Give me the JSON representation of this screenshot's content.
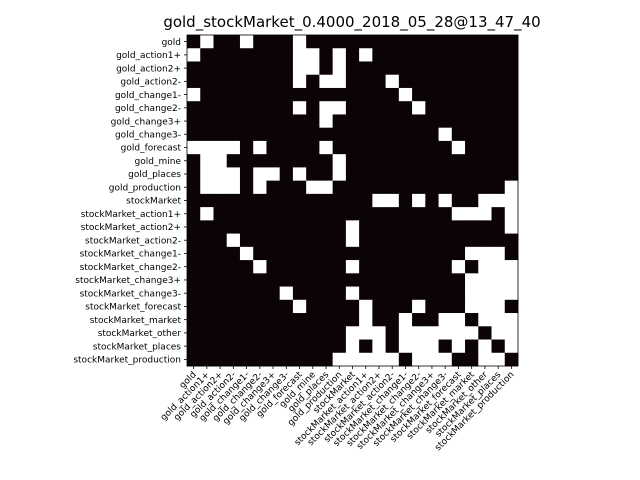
{
  "chart_data": {
    "type": "heatmap",
    "title": "gold_stockMarket_0.4000_2018_05_28@13_47_40",
    "xlabel": "",
    "ylabel": "",
    "colors": {
      "zero": "#0c0404",
      "one": "#ffffff",
      "frame": "#000000"
    },
    "labels": [
      "gold",
      "gold_action1+",
      "gold_action2+",
      "gold_action2-",
      "gold_change1-",
      "gold_change2-",
      "gold_change3+",
      "gold_change3-",
      "gold_forecast",
      "gold_mine",
      "gold_places",
      "gold_production",
      "stockMarket",
      "stockMarket_action1+",
      "stockMarket_action2+",
      "stockMarket_action2-",
      "stockMarket_change1-",
      "stockMarket_change2-",
      "stockMarket_change3+",
      "stockMarket_change3-",
      "stockMarket_forecast",
      "stockMarket_market",
      "stockMarket_other",
      "stockMarket_places",
      "stockMarket_production"
    ],
    "matrix": [
      [
        0,
        1,
        0,
        0,
        1,
        0,
        0,
        0,
        1,
        0,
        0,
        0,
        0,
        0,
        0,
        0,
        0,
        0,
        0,
        0,
        0,
        0,
        0,
        0,
        0
      ],
      [
        1,
        0,
        0,
        0,
        0,
        0,
        0,
        0,
        1,
        1,
        0,
        1,
        0,
        1,
        0,
        0,
        0,
        0,
        0,
        0,
        0,
        0,
        0,
        0,
        0
      ],
      [
        0,
        0,
        0,
        0,
        0,
        0,
        0,
        0,
        1,
        1,
        0,
        1,
        0,
        0,
        0,
        0,
        0,
        0,
        0,
        0,
        0,
        0,
        0,
        0,
        0
      ],
      [
        0,
        0,
        0,
        0,
        0,
        0,
        0,
        0,
        1,
        0,
        1,
        1,
        0,
        0,
        0,
        1,
        0,
        0,
        0,
        0,
        0,
        0,
        0,
        0,
        0
      ],
      [
        1,
        0,
        0,
        0,
        0,
        0,
        0,
        0,
        0,
        0,
        0,
        0,
        0,
        0,
        0,
        0,
        1,
        0,
        0,
        0,
        0,
        0,
        0,
        0,
        0
      ],
      [
        0,
        0,
        0,
        0,
        0,
        0,
        0,
        0,
        1,
        0,
        1,
        1,
        0,
        0,
        0,
        0,
        0,
        1,
        0,
        0,
        0,
        0,
        0,
        0,
        0
      ],
      [
        0,
        0,
        0,
        0,
        0,
        0,
        0,
        0,
        0,
        0,
        1,
        0,
        0,
        0,
        0,
        0,
        0,
        0,
        0,
        0,
        0,
        0,
        0,
        0,
        0
      ],
      [
        0,
        0,
        0,
        0,
        0,
        0,
        0,
        0,
        0,
        0,
        0,
        0,
        0,
        0,
        0,
        0,
        0,
        0,
        0,
        1,
        0,
        0,
        0,
        0,
        0
      ],
      [
        1,
        1,
        1,
        1,
        0,
        1,
        0,
        0,
        0,
        0,
        1,
        0,
        0,
        0,
        0,
        0,
        0,
        0,
        0,
        0,
        1,
        0,
        0,
        0,
        0
      ],
      [
        0,
        1,
        1,
        0,
        0,
        0,
        0,
        0,
        0,
        0,
        0,
        1,
        0,
        0,
        0,
        0,
        0,
        0,
        0,
        0,
        0,
        0,
        0,
        0,
        0
      ],
      [
        0,
        1,
        1,
        1,
        0,
        1,
        1,
        0,
        1,
        0,
        0,
        1,
        0,
        0,
        0,
        0,
        0,
        0,
        0,
        0,
        0,
        0,
        0,
        0,
        0
      ],
      [
        0,
        1,
        1,
        1,
        0,
        1,
        0,
        0,
        0,
        1,
        1,
        0,
        0,
        0,
        0,
        0,
        0,
        0,
        0,
        0,
        0,
        0,
        0,
        0,
        1
      ],
      [
        0,
        0,
        0,
        0,
        0,
        0,
        0,
        0,
        0,
        0,
        0,
        0,
        0,
        0,
        1,
        1,
        0,
        1,
        0,
        1,
        0,
        0,
        1,
        1,
        1
      ],
      [
        0,
        1,
        0,
        0,
        0,
        0,
        0,
        0,
        0,
        0,
        0,
        0,
        0,
        0,
        0,
        0,
        0,
        0,
        0,
        0,
        1,
        1,
        1,
        0,
        1
      ],
      [
        0,
        0,
        0,
        0,
        0,
        0,
        0,
        0,
        0,
        0,
        0,
        0,
        1,
        0,
        0,
        0,
        0,
        0,
        0,
        0,
        0,
        0,
        0,
        0,
        1
      ],
      [
        0,
        0,
        0,
        1,
        0,
        0,
        0,
        0,
        0,
        0,
        0,
        0,
        1,
        0,
        0,
        0,
        0,
        0,
        0,
        0,
        0,
        0,
        0,
        0,
        0
      ],
      [
        0,
        0,
        0,
        0,
        1,
        0,
        0,
        0,
        0,
        0,
        0,
        0,
        0,
        0,
        0,
        0,
        0,
        0,
        0,
        0,
        0,
        1,
        1,
        1,
        0
      ],
      [
        0,
        0,
        0,
        0,
        0,
        1,
        0,
        0,
        0,
        0,
        0,
        0,
        1,
        0,
        0,
        0,
        0,
        0,
        0,
        0,
        1,
        0,
        1,
        1,
        1
      ],
      [
        0,
        0,
        0,
        0,
        0,
        0,
        0,
        0,
        0,
        0,
        0,
        0,
        0,
        0,
        0,
        0,
        0,
        0,
        0,
        0,
        0,
        1,
        1,
        1,
        1
      ],
      [
        0,
        0,
        0,
        0,
        0,
        0,
        0,
        1,
        0,
        0,
        0,
        0,
        1,
        0,
        0,
        0,
        0,
        0,
        0,
        0,
        0,
        1,
        1,
        1,
        1
      ],
      [
        0,
        0,
        0,
        0,
        0,
        0,
        0,
        0,
        1,
        0,
        0,
        0,
        0,
        1,
        0,
        0,
        0,
        1,
        0,
        0,
        0,
        1,
        1,
        1,
        0
      ],
      [
        0,
        0,
        0,
        0,
        0,
        0,
        0,
        0,
        0,
        0,
        0,
        0,
        0,
        1,
        0,
        0,
        1,
        0,
        0,
        1,
        1,
        0,
        1,
        1,
        1
      ],
      [
        0,
        0,
        0,
        0,
        0,
        0,
        0,
        0,
        0,
        0,
        0,
        0,
        1,
        1,
        1,
        0,
        1,
        1,
        1,
        1,
        1,
        1,
        0,
        1,
        1
      ],
      [
        0,
        0,
        0,
        0,
        0,
        0,
        0,
        0,
        0,
        0,
        0,
        0,
        1,
        0,
        1,
        0,
        1,
        1,
        1,
        0,
        1,
        0,
        1,
        0,
        1
      ],
      [
        0,
        0,
        0,
        0,
        0,
        0,
        0,
        0,
        0,
        0,
        0,
        1,
        1,
        1,
        1,
        1,
        0,
        1,
        1,
        1,
        0,
        0,
        1,
        1,
        0
      ]
    ]
  }
}
